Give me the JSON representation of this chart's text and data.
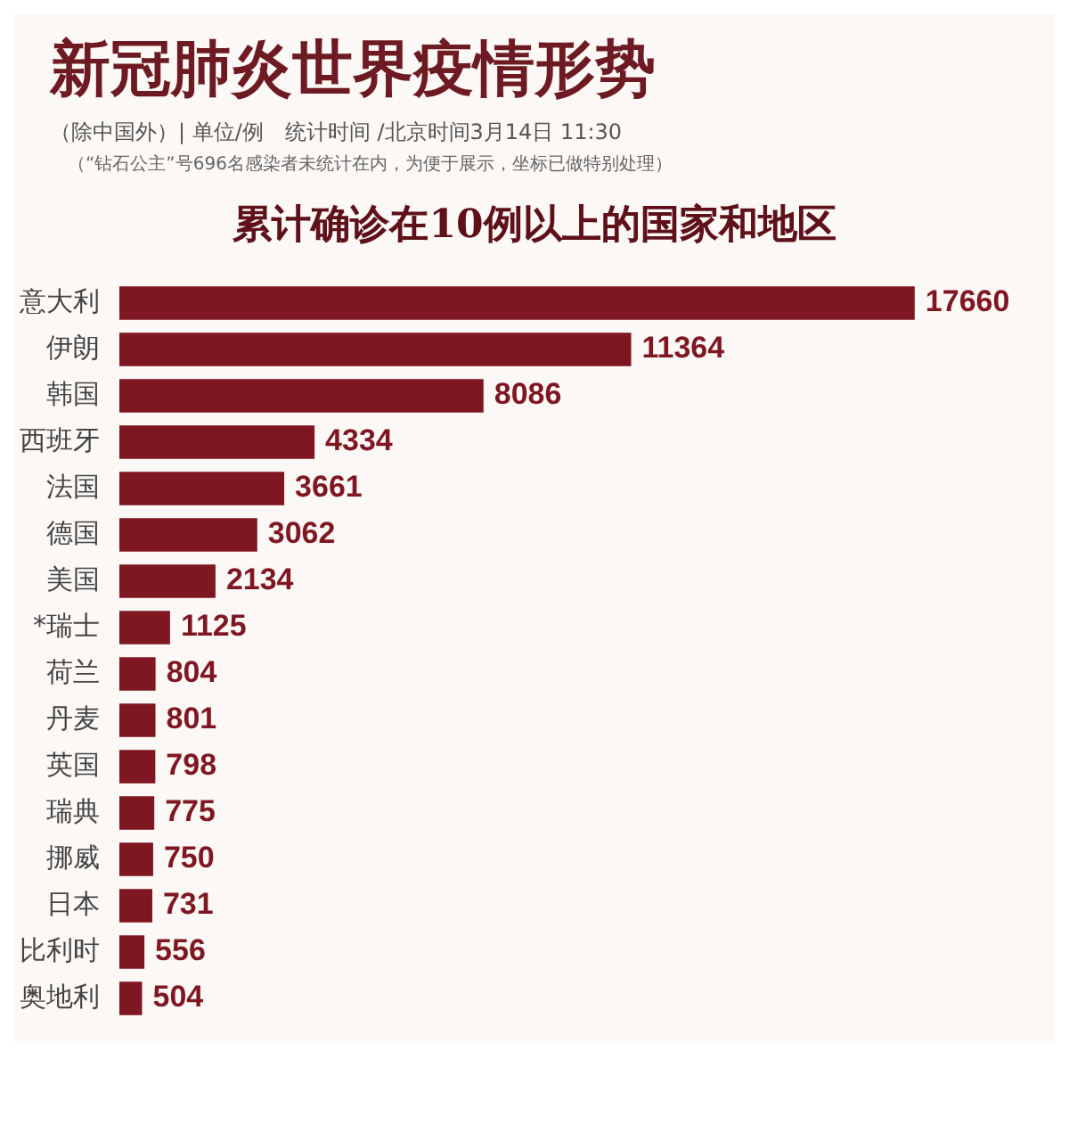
{
  "chart_data": {
    "type": "bar",
    "orientation": "horizontal",
    "title": "新冠肺炎世界疫情形势",
    "subtitle": "（除中国外）| 单位/例　统计时间 /北京时间3月14日 11:30",
    "annotations": [
      "（“钻石公主”号696名感染者未统计在内，为便于展示，坐标已做特别处理）",
      "累计确诊在10例以上的国家和地区"
    ],
    "categories": [
      "意大利",
      "伊朗",
      "韩国",
      "西班牙",
      "法国",
      "德国",
      "美国",
      "*瑞士",
      "荷兰",
      "丹麦",
      "英国",
      "瑞典",
      "挪威",
      "日本",
      "比利时",
      "奥地利"
    ],
    "values": [
      17660,
      11364,
      8086,
      4334,
      3661,
      3062,
      2134,
      1125,
      804,
      801,
      798,
      775,
      750,
      731,
      556,
      504
    ],
    "color": "#7f1722",
    "data_labels": true,
    "legend": false
  }
}
